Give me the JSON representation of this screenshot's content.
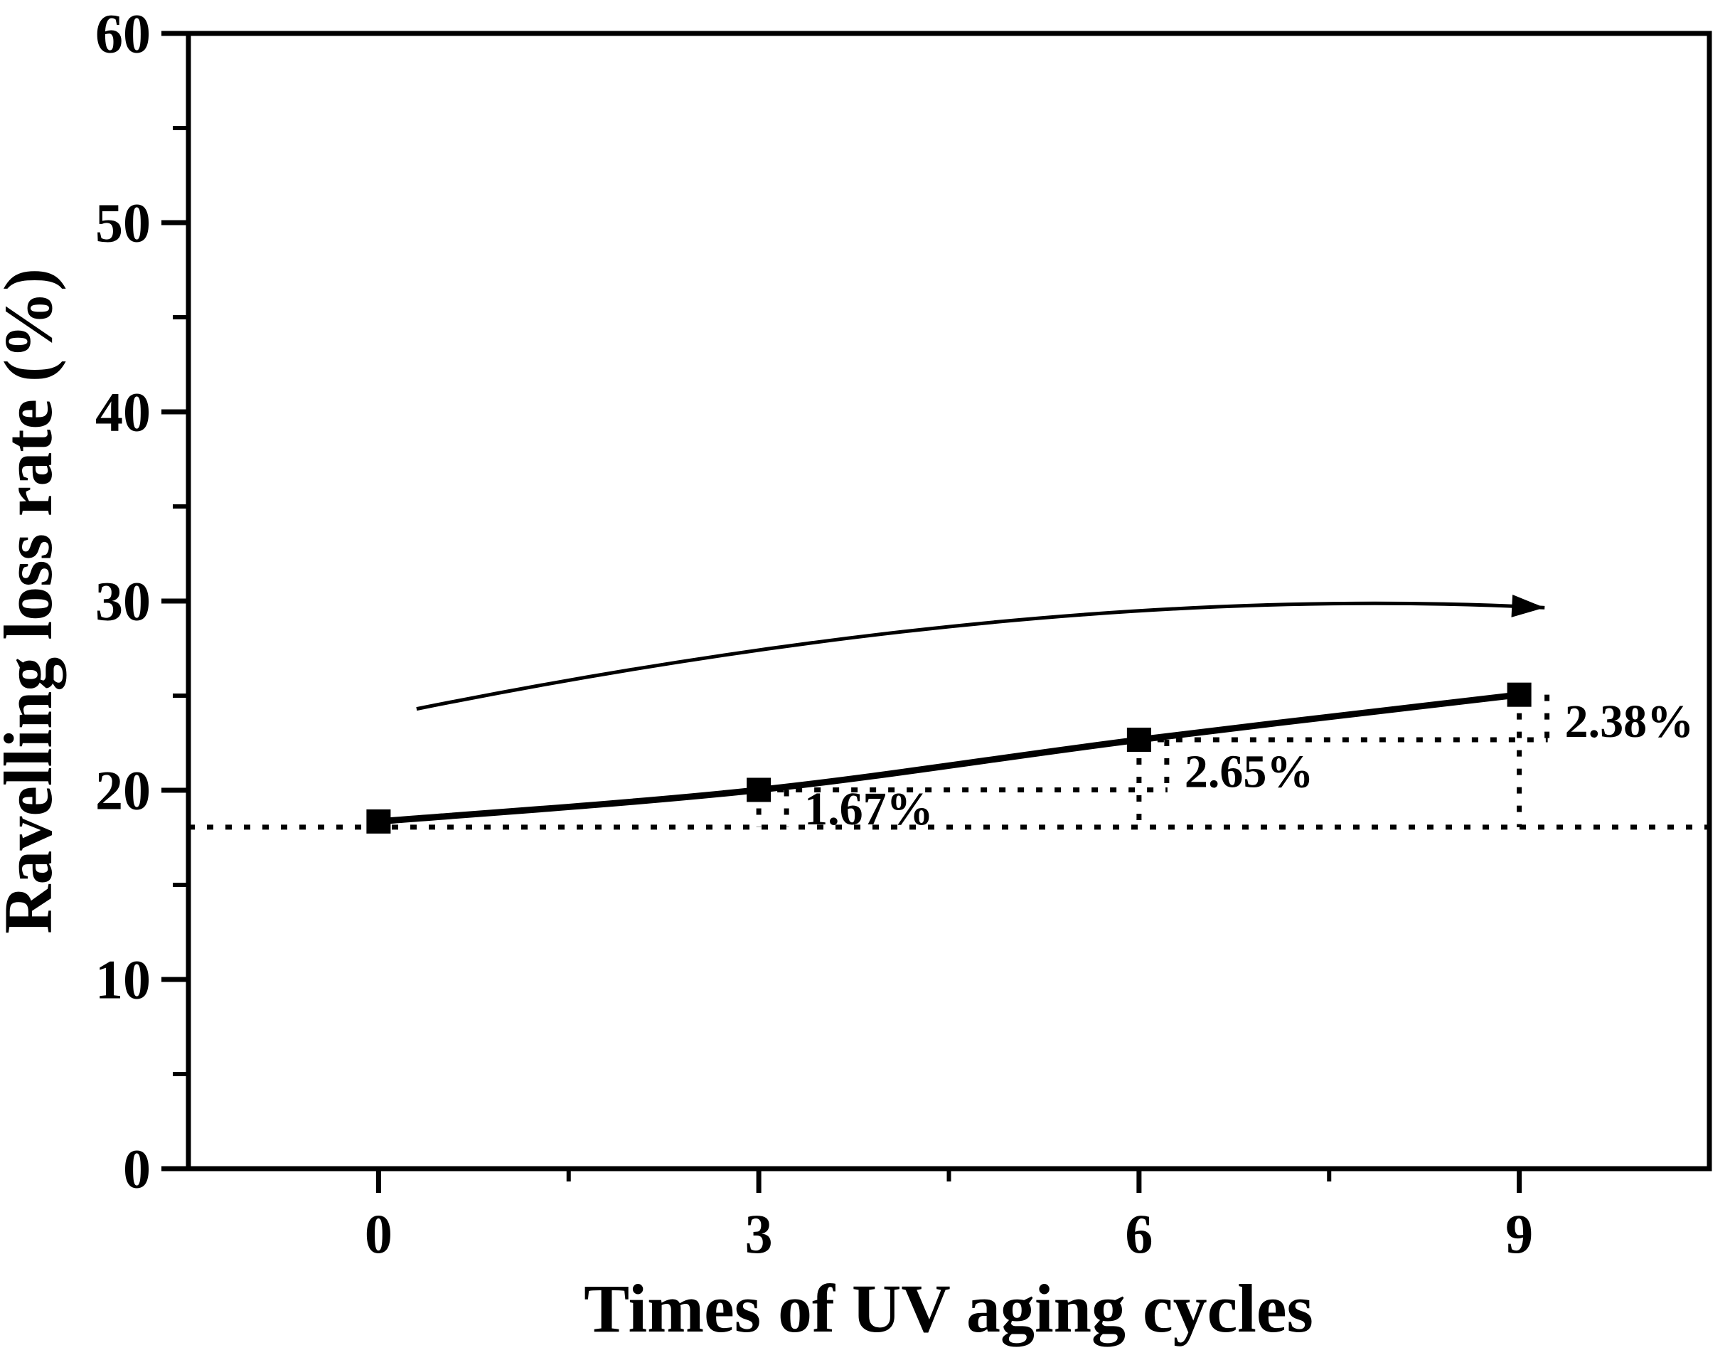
{
  "chart_data": {
    "type": "line",
    "title": "",
    "xlabel": "Times of UV aging cycles",
    "ylabel": "Ravelling loss rate (%)",
    "x": [
      0,
      3,
      6,
      9
    ],
    "series": [
      {
        "name": "Ravelling loss rate",
        "values": [
          18.35,
          20.02,
          22.67,
          25.05
        ]
      }
    ],
    "increments": [
      {
        "label": "1.67%",
        "from_x": 0,
        "to_x": 3
      },
      {
        "label": "2.65%",
        "from_x": 3,
        "to_x": 6
      },
      {
        "label": "2.38%",
        "from_x": 6,
        "to_x": 9
      }
    ],
    "baseline_value": 18.05,
    "xlim": [
      -1.5,
      10.5
    ],
    "ylim": [
      0,
      60
    ],
    "x_major_ticks": [
      0,
      3,
      6,
      9
    ],
    "x_minor_ticks": [
      1.5,
      4.5,
      7.5
    ],
    "y_major_ticks": [
      0,
      10,
      20,
      30,
      40,
      50,
      60
    ],
    "y_minor_ticks": [
      5,
      15,
      25,
      35,
      45,
      55
    ],
    "marker": "square",
    "grid": "off",
    "legend": "none",
    "trend_arrow": {
      "from": [
        0.3,
        24.3
      ],
      "control": [
        5.3,
        31.0
      ],
      "to": [
        9.2,
        29.65
      ]
    },
    "colors": {
      "line": "#000000",
      "marker": "#000000",
      "text": "#000000",
      "background": "#ffffff"
    }
  }
}
